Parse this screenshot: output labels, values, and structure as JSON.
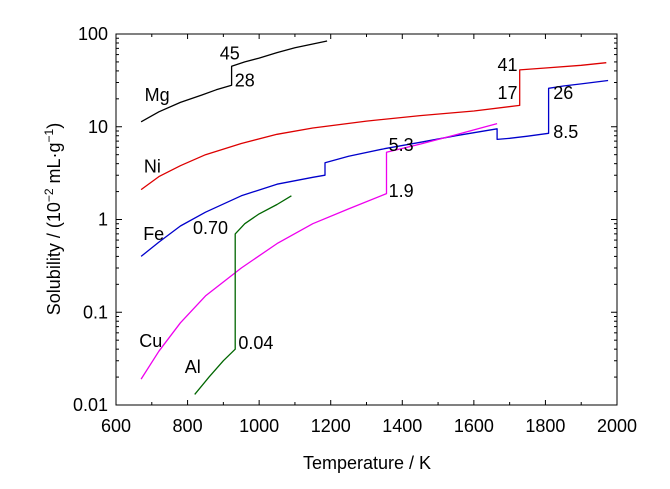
{
  "chart_data": {
    "type": "line",
    "xlabel": "Temperature / K",
    "ylabel_main": "Solubility / (10",
    "ylabel_exp": "−2",
    "ylabel_unit": " mL·g",
    "ylabel_unit_exp": "−1",
    "ylabel_close": ")",
    "xlim": [
      600,
      2000
    ],
    "ylim": [
      0.01,
      100
    ],
    "y_scale": "log",
    "x_ticks": [
      600,
      800,
      1000,
      1200,
      1400,
      1600,
      1800,
      2000
    ],
    "x_tick_labels": [
      "600",
      "800",
      "1000",
      "1200",
      "1400",
      "1600",
      "1800",
      "2000"
    ],
    "y_ticks": [
      0.01,
      0.1,
      1,
      10,
      100
    ],
    "y_tick_labels": [
      "0.01",
      "0.1",
      "1",
      "10",
      "100"
    ],
    "grid": false,
    "series": [
      {
        "name": "Mg",
        "color": "#000000",
        "points": [
          [
            670,
            11.3
          ],
          [
            720,
            14.5
          ],
          [
            780,
            18.3
          ],
          [
            840,
            22.0
          ],
          [
            880,
            25.0
          ],
          [
            923,
            28
          ],
          [
            923,
            45
          ],
          [
            960,
            50
          ],
          [
            1000,
            55
          ],
          [
            1050,
            63
          ],
          [
            1100,
            71
          ],
          [
            1150,
            78
          ],
          [
            1190,
            84
          ]
        ]
      },
      {
        "name": "Ni",
        "color": "#dd0000",
        "points": [
          [
            670,
            2.1
          ],
          [
            720,
            2.9
          ],
          [
            780,
            3.8
          ],
          [
            850,
            5.0
          ],
          [
            950,
            6.6
          ],
          [
            1050,
            8.3
          ],
          [
            1150,
            9.7
          ],
          [
            1300,
            11.5
          ],
          [
            1450,
            13.2
          ],
          [
            1600,
            14.8
          ],
          [
            1728,
            17
          ],
          [
            1728,
            41
          ],
          [
            1800,
            43
          ],
          [
            1900,
            46
          ],
          [
            1970,
            49
          ]
        ]
      },
      {
        "name": "Fe",
        "color": "#0000cc",
        "points": [
          [
            670,
            0.4
          ],
          [
            720,
            0.57
          ],
          [
            780,
            0.85
          ],
          [
            850,
            1.2
          ],
          [
            950,
            1.8
          ],
          [
            1050,
            2.4
          ],
          [
            1150,
            2.85
          ],
          [
            1184,
            3.0
          ],
          [
            1184,
            4.1
          ],
          [
            1250,
            4.8
          ],
          [
            1350,
            5.8
          ],
          [
            1450,
            6.8
          ],
          [
            1550,
            8.0
          ],
          [
            1665,
            9.5
          ],
          [
            1665,
            7.3
          ],
          [
            1700,
            7.5
          ],
          [
            1750,
            7.9
          ],
          [
            1809,
            8.5
          ],
          [
            1809,
            26
          ],
          [
            1850,
            27.5
          ],
          [
            1900,
            29
          ],
          [
            1975,
            31.5
          ]
        ]
      },
      {
        "name": "Cu",
        "color": "#ee00ee",
        "points": [
          [
            670,
            0.019
          ],
          [
            720,
            0.038
          ],
          [
            780,
            0.077
          ],
          [
            850,
            0.15
          ],
          [
            950,
            0.3
          ],
          [
            1050,
            0.55
          ],
          [
            1150,
            0.9
          ],
          [
            1250,
            1.3
          ],
          [
            1356,
            1.9
          ],
          [
            1356,
            5.3
          ],
          [
            1450,
            6.5
          ],
          [
            1550,
            8.2
          ],
          [
            1665,
            10.8
          ]
        ]
      },
      {
        "name": "Al",
        "color": "#006600",
        "points": [
          [
            820,
            0.013
          ],
          [
            860,
            0.02
          ],
          [
            900,
            0.03
          ],
          [
            933,
            0.04
          ],
          [
            933,
            0.7
          ],
          [
            960,
            0.9
          ],
          [
            1000,
            1.15
          ],
          [
            1050,
            1.45
          ],
          [
            1090,
            1.8
          ]
        ]
      }
    ],
    "series_labels": [
      {
        "text": "Mg",
        "x": 680,
        "y": 19
      },
      {
        "text": "Ni",
        "x": 678,
        "y": 3.2
      },
      {
        "text": "Fe",
        "x": 676,
        "y": 0.6
      },
      {
        "text": "Cu",
        "x": 665,
        "y": 0.042
      },
      {
        "text": "Al",
        "x": 792,
        "y": 0.022
      }
    ],
    "annotations": [
      {
        "text": "45",
        "x": 890,
        "y": 53
      },
      {
        "text": "28",
        "x": 932,
        "y": 27
      },
      {
        "text": "41",
        "x": 1666,
        "y": 40
      },
      {
        "text": "17",
        "x": 1666,
        "y": 20
      },
      {
        "text": "26",
        "x": 1822,
        "y": 20
      },
      {
        "text": "8.5",
        "x": 1822,
        "y": 7.6
      },
      {
        "text": "5.3",
        "x": 1362,
        "y": 5.5
      },
      {
        "text": "1.9",
        "x": 1362,
        "y": 1.75
      },
      {
        "text": "0.70",
        "x": 815,
        "y": 0.7
      },
      {
        "text": "0.04",
        "x": 942,
        "y": 0.04
      }
    ]
  }
}
